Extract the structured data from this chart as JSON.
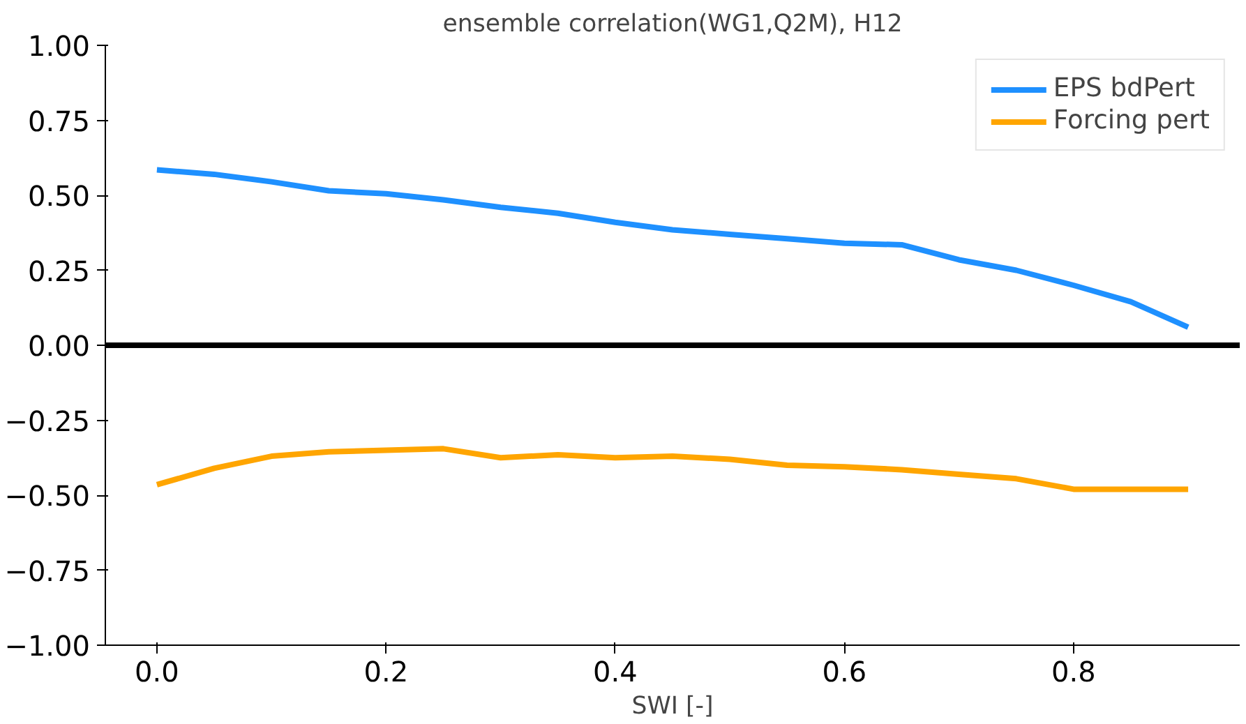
{
  "chart_data": {
    "type": "line",
    "subtitle": "ensemble correlation(WG1,Q2M), H12",
    "xlabel": "SWI [-]",
    "x": [
      0.0,
      0.05,
      0.1,
      0.15,
      0.2,
      0.25,
      0.3,
      0.35,
      0.4,
      0.45,
      0.5,
      0.55,
      0.6,
      0.65,
      0.7,
      0.75,
      0.8,
      0.85,
      0.9
    ],
    "series": [
      {
        "name": "EPS bdPert",
        "color": "#1e90ff",
        "values": [
          0.585,
          0.57,
          0.545,
          0.515,
          0.505,
          0.485,
          0.46,
          0.44,
          0.41,
          0.385,
          0.37,
          0.355,
          0.34,
          0.335,
          0.285,
          0.25,
          0.2,
          0.145,
          0.06
        ]
      },
      {
        "name": "Forcing pert",
        "color": "#ffa500",
        "values": [
          -0.465,
          -0.41,
          -0.37,
          -0.355,
          -0.35,
          -0.345,
          -0.375,
          -0.365,
          -0.375,
          -0.37,
          -0.38,
          -0.4,
          -0.405,
          -0.415,
          -0.43,
          -0.445,
          -0.48,
          -0.48,
          -0.48
        ]
      }
    ],
    "xlim": [
      -0.045,
      0.945
    ],
    "ylim": [
      -1.0,
      1.0
    ],
    "xticks": [
      {
        "value": 0.0,
        "label": "0.0"
      },
      0.2,
      0.4,
      0.6,
      0.8
    ],
    "yticks": [
      {
        "value": -1.0,
        "label": "−1.00"
      },
      {
        "value": -0.75,
        "label": "−0.75"
      },
      {
        "value": -0.5,
        "label": "−0.50"
      },
      {
        "value": -0.25,
        "label": "−0.25"
      },
      {
        "value": 0.0,
        "label": "0.00"
      },
      {
        "value": 0.25,
        "label": "0.25"
      },
      {
        "value": 0.5,
        "label": "0.50"
      },
      {
        "value": 0.75,
        "label": "0.75"
      },
      {
        "value": 1.0,
        "label": "1.00"
      }
    ],
    "ref_lines": [
      {
        "axis": "y",
        "value": 0,
        "color": "#000000"
      }
    ],
    "grid": false,
    "legend": "top right",
    "line_style": "solid"
  }
}
